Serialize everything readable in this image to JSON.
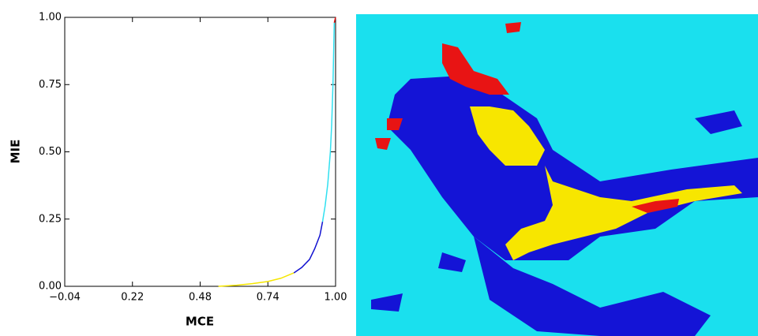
{
  "chart_data": {
    "type": "line",
    "x_label": "MCE",
    "y_label": "MIE",
    "xlim": [
      -0.04,
      1.0
    ],
    "ylim": [
      0,
      1.0
    ],
    "xticks": [
      {
        "value": -0.04,
        "label": "−0.04"
      },
      0.22,
      0.48,
      0.74,
      {
        "value": 1.0,
        "label": "1.00"
      }
    ],
    "yticks": [
      {
        "value": 0,
        "label": "0.00"
      },
      0.25,
      {
        "value": 0.5,
        "label": "0.50"
      },
      0.75,
      {
        "value": 1.0,
        "label": "1.00"
      }
    ],
    "grid": false,
    "series": [
      {
        "color": "#f5e600",
        "x": [
          0.55,
          0.62,
          0.68,
          0.74,
          0.79,
          0.84
        ],
        "values": [
          0,
          0.004,
          0.01,
          0.018,
          0.03,
          0.05
        ]
      },
      {
        "color": "#1010d0",
        "x": [
          0.84,
          0.87,
          0.9,
          0.92,
          0.94,
          0.95
        ],
        "values": [
          0.05,
          0.07,
          0.1,
          0.14,
          0.19,
          0.24
        ]
      },
      {
        "color": "#30e0f0",
        "x": [
          0.95,
          0.96,
          0.97,
          0.98,
          0.985,
          0.99,
          0.995
        ],
        "values": [
          0.24,
          0.3,
          0.38,
          0.5,
          0.6,
          0.75,
          0.98
        ]
      },
      {
        "color": "#e01010",
        "x": [
          0.995,
          1.0
        ],
        "values": [
          0.98,
          1.0
        ]
      }
    ]
  }
}
